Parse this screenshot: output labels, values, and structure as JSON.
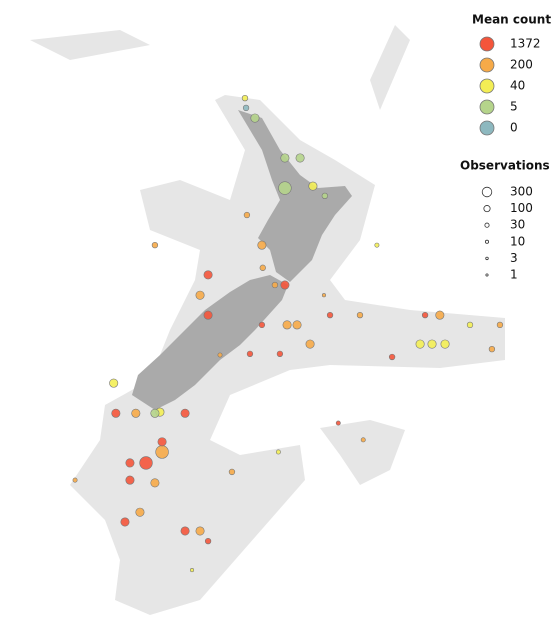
{
  "map": {
    "legend_count": {
      "title": "Mean count",
      "levels": [
        1372,
        200,
        40,
        5,
        0
      ],
      "colors": [
        "#f4553b",
        "#f6aa48",
        "#f3ee55",
        "#b5d48b",
        "#8db8bf"
      ]
    },
    "legend_obs": {
      "title": "Observations",
      "levels": [
        300,
        100,
        30,
        10,
        3,
        1
      ]
    },
    "points": {
      "lon": [
        173.18,
        172.72,
        174.56,
        175.26,
        174.56,
        176.4,
        175.85,
        173.5,
        172.81,
        173.54,
        171.02,
        170.65,
        171.02,
        174.56,
        174.1,
        173.5,
        174.66,
        175.12,
        176.64,
        178.02,
        181.02,
        181.7,
        183.09,
        184.47,
        180.79,
        181.34,
        181.94,
        184.1,
        179.5,
        175.72,
        174.33,
        172.95,
        171.57,
        166.67,
        166.77,
        167.69,
        168.8,
        168.57,
        169.96,
        168.9,
        168.9,
        167.42,
        168.16,
        167.42,
        168.57,
        167.88,
        167.19,
        169.96,
        170.65,
        171.02,
        172.12,
        174.26,
        177.02,
        178.17,
        164.89,
        172.77,
        168.57,
        178.8,
        170.28,
        176.36
      ],
      "lat": [
        -34.99,
        -34.48,
        -36.01,
        -36.01,
        -36.78,
        -36.98,
        -36.73,
        -38.24,
        -37.47,
        -38.82,
        -39.0,
        -39.52,
        -40.03,
        -39.26,
        -39.26,
        -40.28,
        -40.28,
        -40.28,
        -40.03,
        -40.03,
        -40.03,
        -40.03,
        -40.28,
        -40.28,
        -40.77,
        -40.77,
        -40.77,
        -40.9,
        -41.1,
        -40.77,
        -41.02,
        -41.02,
        -41.05,
        -41.77,
        -42.54,
        -42.54,
        -42.51,
        -42.54,
        -42.54,
        -43.27,
        -43.53,
        -43.81,
        -43.81,
        -44.25,
        -44.32,
        -45.07,
        -45.32,
        -45.55,
        -45.55,
        -45.81,
        -44.04,
        -43.53,
        -42.79,
        -43.22,
        -44.25,
        -34.73,
        -38.24,
        -38.24,
        -46.55,
        -39.52
      ],
      "count": [
        5,
        40,
        5,
        5,
        5,
        5,
        40,
        200,
        200,
        200,
        1372,
        200,
        1372,
        1372,
        200,
        1372,
        200,
        200,
        1372,
        200,
        1372,
        200,
        40,
        200,
        40,
        40,
        40,
        200,
        1372,
        200,
        1372,
        1372,
        200,
        40,
        1372,
        200,
        40,
        5,
        1372,
        1372,
        200,
        1372,
        1372,
        1372,
        200,
        200,
        1372,
        1372,
        200,
        1372,
        200,
        40,
        1372,
        200,
        200,
        0,
        200,
        40,
        40,
        200
      ],
      "obs": [
        100,
        30,
        100,
        100,
        300,
        30,
        100,
        100,
        30,
        30,
        100,
        100,
        100,
        100,
        30,
        30,
        100,
        100,
        30,
        30,
        30,
        100,
        30,
        30,
        100,
        100,
        100,
        30,
        30,
        100,
        30,
        30,
        10,
        100,
        100,
        100,
        100,
        100,
        100,
        100,
        300,
        100,
        300,
        100,
        100,
        100,
        100,
        100,
        100,
        30,
        30,
        10,
        10,
        10,
        10,
        30,
        30,
        10,
        3,
        3
      ]
    }
  }
}
